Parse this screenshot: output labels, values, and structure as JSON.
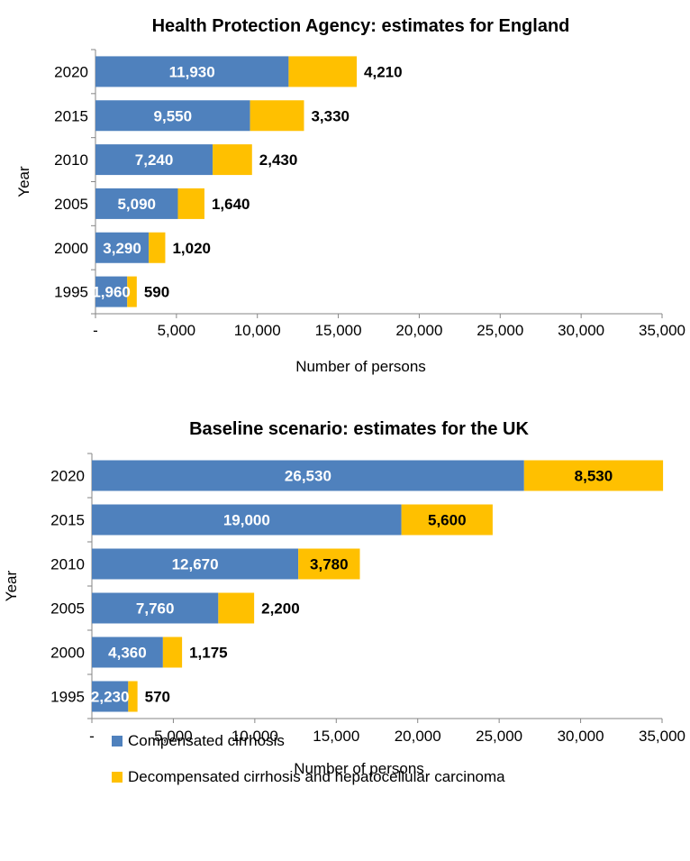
{
  "legend": {
    "compensated": "Compensated cirrhosis",
    "decompensated": "Decompensated cirrhosis and hepatocellular carcinoma"
  },
  "colors": {
    "compensated": "#4f81bd",
    "decompensated": "#ffc000"
  },
  "chart_data": [
    {
      "type": "bar",
      "orientation": "horizontal",
      "stacked": true,
      "title": "Health Protection Agency: estimates for England",
      "xlabel": "Number of persons",
      "ylabel": "Year",
      "categories": [
        "2020",
        "2015",
        "2010",
        "2005",
        "2000",
        "1995"
      ],
      "series": [
        {
          "name": "Compensated cirrhosis",
          "values": [
            11930,
            9550,
            7240,
            5090,
            3290,
            1960
          ],
          "labels": [
            "11,930",
            "9,550",
            "7,240",
            "5,090",
            "3,290",
            "1,960"
          ]
        },
        {
          "name": "Decompensated cirrhosis and hepatocellular carcinoma",
          "values": [
            4210,
            3330,
            2430,
            1640,
            1020,
            590
          ],
          "labels": [
            "4,210",
            "3,330",
            "2,430",
            "1,640",
            "1,020",
            "590"
          ]
        }
      ],
      "xlim": [
        0,
        35000
      ],
      "xticks": [
        0,
        5000,
        10000,
        15000,
        20000,
        25000,
        30000,
        35000
      ],
      "xtick_labels": [
        "-",
        "5,000",
        "10,000",
        "15,000",
        "20,000",
        "25,000",
        "30,000",
        "35,000"
      ]
    },
    {
      "type": "bar",
      "orientation": "horizontal",
      "stacked": true,
      "title": "Baseline scenario: estimates for the UK",
      "xlabel": "Number of persons",
      "ylabel": "Year",
      "categories": [
        "2020",
        "2015",
        "2010",
        "2005",
        "2000",
        "1995"
      ],
      "series": [
        {
          "name": "Compensated cirrhosis",
          "values": [
            26530,
            19000,
            12670,
            7760,
            4360,
            2230
          ],
          "labels": [
            "26,530",
            "19,000",
            "12,670",
            "7,760",
            "4,360",
            "2,230"
          ]
        },
        {
          "name": "Decompensated cirrhosis and hepatocellular carcinoma",
          "values": [
            8530,
            5600,
            3780,
            2200,
            1175,
            570
          ],
          "labels": [
            "8,530",
            "5,600",
            "3,780",
            "2,200",
            "1,175",
            "570"
          ]
        }
      ],
      "xlim": [
        0,
        35000
      ],
      "xticks": [
        0,
        5000,
        10000,
        15000,
        20000,
        25000,
        30000,
        35000
      ],
      "xtick_labels": [
        "-",
        "5,000",
        "10,000",
        "15,000",
        "20,000",
        "25,000",
        "30,000",
        "35,000"
      ]
    }
  ]
}
